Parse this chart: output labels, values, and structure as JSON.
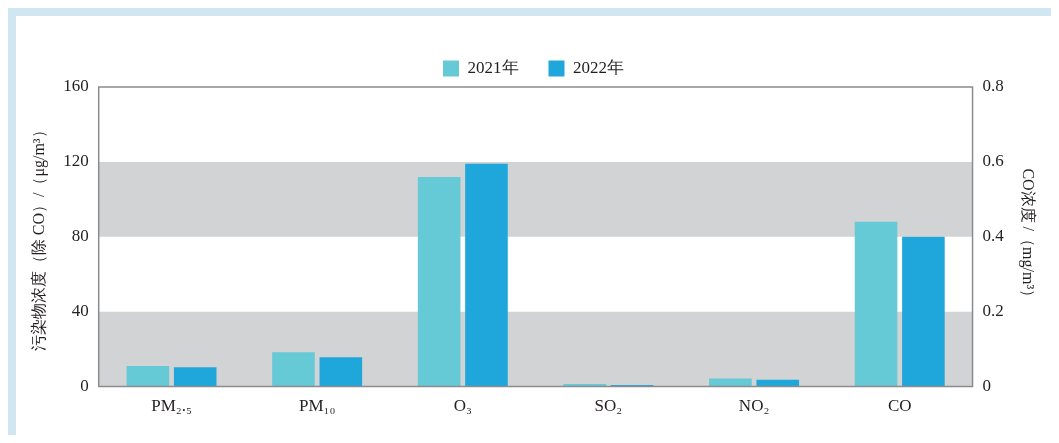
{
  "chart_data": {
    "type": "bar",
    "categories": [
      "PM₂.₅",
      "PM₁₀",
      "O₃",
      "SO₂",
      "NO₂",
      "CO"
    ],
    "series": [
      {
        "name": "2021年",
        "color": "#66c9d6",
        "values": [
          11,
          18.4,
          112,
          1.4,
          4.3,
          null
        ]
      },
      {
        "name": "2022年",
        "color": "#1fa7dc",
        "values": [
          10.3,
          15.7,
          119,
          0.8,
          3.7,
          null
        ]
      },
      {
        "color": "#66c9d6",
        "axis": "y2",
        "values": [
          null,
          null,
          null,
          null,
          null,
          0.44
        ]
      },
      {
        "color": "#1fa7dc",
        "axis": "y2",
        "values": [
          null,
          null,
          null,
          null,
          null,
          0.4
        ]
      }
    ],
    "ylabel": "污染物浓度（除 CO）/（μg/m³）",
    "y2label": "CO浓度 /（mg/m³）",
    "ylim": [
      0,
      160
    ],
    "yticks": [
      0,
      40,
      80,
      120,
      160
    ],
    "y2lim": [
      0,
      0.8
    ],
    "y2ticks": [
      0,
      0.2,
      0.4,
      0.6,
      0.8
    ],
    "bands": [
      {
        "axis": "y",
        "from": 0,
        "to": 40,
        "color": "#d1d3d4"
      },
      {
        "axis": "y",
        "from": 80,
        "to": 120,
        "color": "#d1d3d4"
      }
    ],
    "grid": false,
    "legend": "top"
  }
}
